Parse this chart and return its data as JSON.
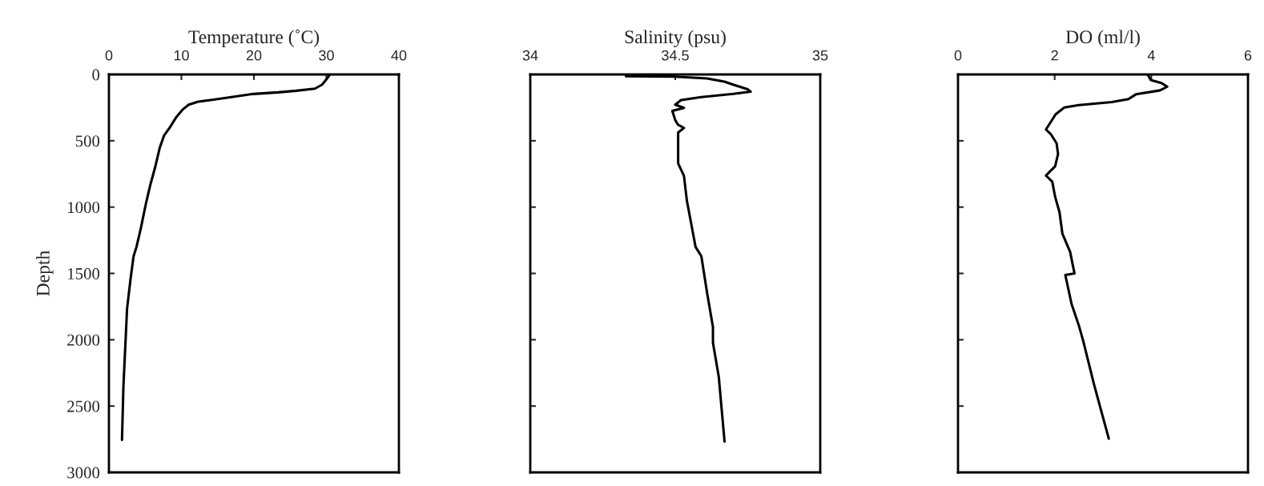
{
  "chart_data": [
    {
      "type": "line",
      "xlabel": "Temperature (˚C)",
      "ylabel": "Depth",
      "xlim": [
        0,
        40
      ],
      "xticks": [
        0,
        10,
        20,
        30,
        40
      ],
      "ylim": [
        3000,
        0
      ],
      "yticks": [
        0,
        500,
        1000,
        1500,
        2000,
        2500,
        3000
      ],
      "series": [
        {
          "color": "#000000",
          "x": [
            30.4,
            30.1,
            29.4,
            28.4,
            25.8,
            23.3,
            19.9,
            16.9,
            14.0,
            12.3,
            11.0,
            10.2,
            9.3,
            8.5,
            7.6,
            7.0,
            6.4,
            5.7,
            5.1,
            4.4,
            3.8,
            3.4,
            3.0,
            2.5,
            2.3,
            2.0,
            1.8
          ],
          "values": [
            7,
            30,
            77,
            107,
            123,
            135,
            147,
            170,
            193,
            205,
            228,
            263,
            321,
            391,
            461,
            554,
            694,
            834,
            974,
            1160,
            1300,
            1370,
            1533,
            1766,
            2000,
            2348,
            2755
          ]
        }
      ]
    },
    {
      "type": "line",
      "xlabel": "Salinity (psu)",
      "xlim": [
        34,
        35
      ],
      "xticks": [
        34,
        34.5,
        35
      ],
      "ylim": [
        3000,
        0
      ],
      "yticks": [
        0,
        500,
        1000,
        1500,
        2000,
        2500,
        3000
      ],
      "tick_labels": "x",
      "series": [
        {
          "color": "#000000",
          "x": [
            34.5,
            34.33,
            34.33,
            34.5,
            34.61,
            34.67,
            34.7,
            34.75,
            34.76,
            34.7,
            34.59,
            34.52,
            34.5,
            34.53,
            34.49,
            34.5,
            34.51,
            34.53,
            34.51,
            34.51,
            34.51,
            34.53,
            34.54,
            34.56,
            34.57,
            34.59,
            34.61,
            34.63,
            34.63,
            34.65,
            34.67
          ],
          "values": [
            2,
            2,
            14,
            16,
            30,
            54,
            77,
            112,
            130,
            147,
            170,
            193,
            228,
            252,
            275,
            345,
            380,
            403,
            438,
            554,
            671,
            764,
            950,
            1183,
            1300,
            1370,
            1649,
            1905,
            2022,
            2278,
            2767
          ]
        }
      ]
    },
    {
      "type": "line",
      "xlabel": "DO (ml/l)",
      "xlim": [
        0,
        6
      ],
      "xticks": [
        0,
        2,
        4,
        6
      ],
      "ylim": [
        3000,
        0
      ],
      "yticks": [
        0,
        500,
        1000,
        1500,
        2000,
        2500,
        3000
      ],
      "tick_labels": "x",
      "series": [
        {
          "color": "#000000",
          "x": [
            3.93,
            3.99,
            4.21,
            4.33,
            4.18,
            3.68,
            3.53,
            3.18,
            2.5,
            2.2,
            2.02,
            1.92,
            1.82,
            1.92,
            2.04,
            2.07,
            2.01,
            1.82,
            1.95,
            2.01,
            2.1,
            2.16,
            2.32,
            2.41,
            2.22,
            2.35,
            2.5,
            2.59,
            2.81,
            3.12
          ],
          "values": [
            5,
            42,
            65,
            92,
            120,
            150,
            185,
            208,
            231,
            249,
            300,
            358,
            415,
            450,
            519,
            600,
            692,
            762,
            808,
            923,
            1038,
            1200,
            1338,
            1500,
            1512,
            1731,
            1892,
            2008,
            2331,
            2746
          ]
        }
      ]
    }
  ]
}
